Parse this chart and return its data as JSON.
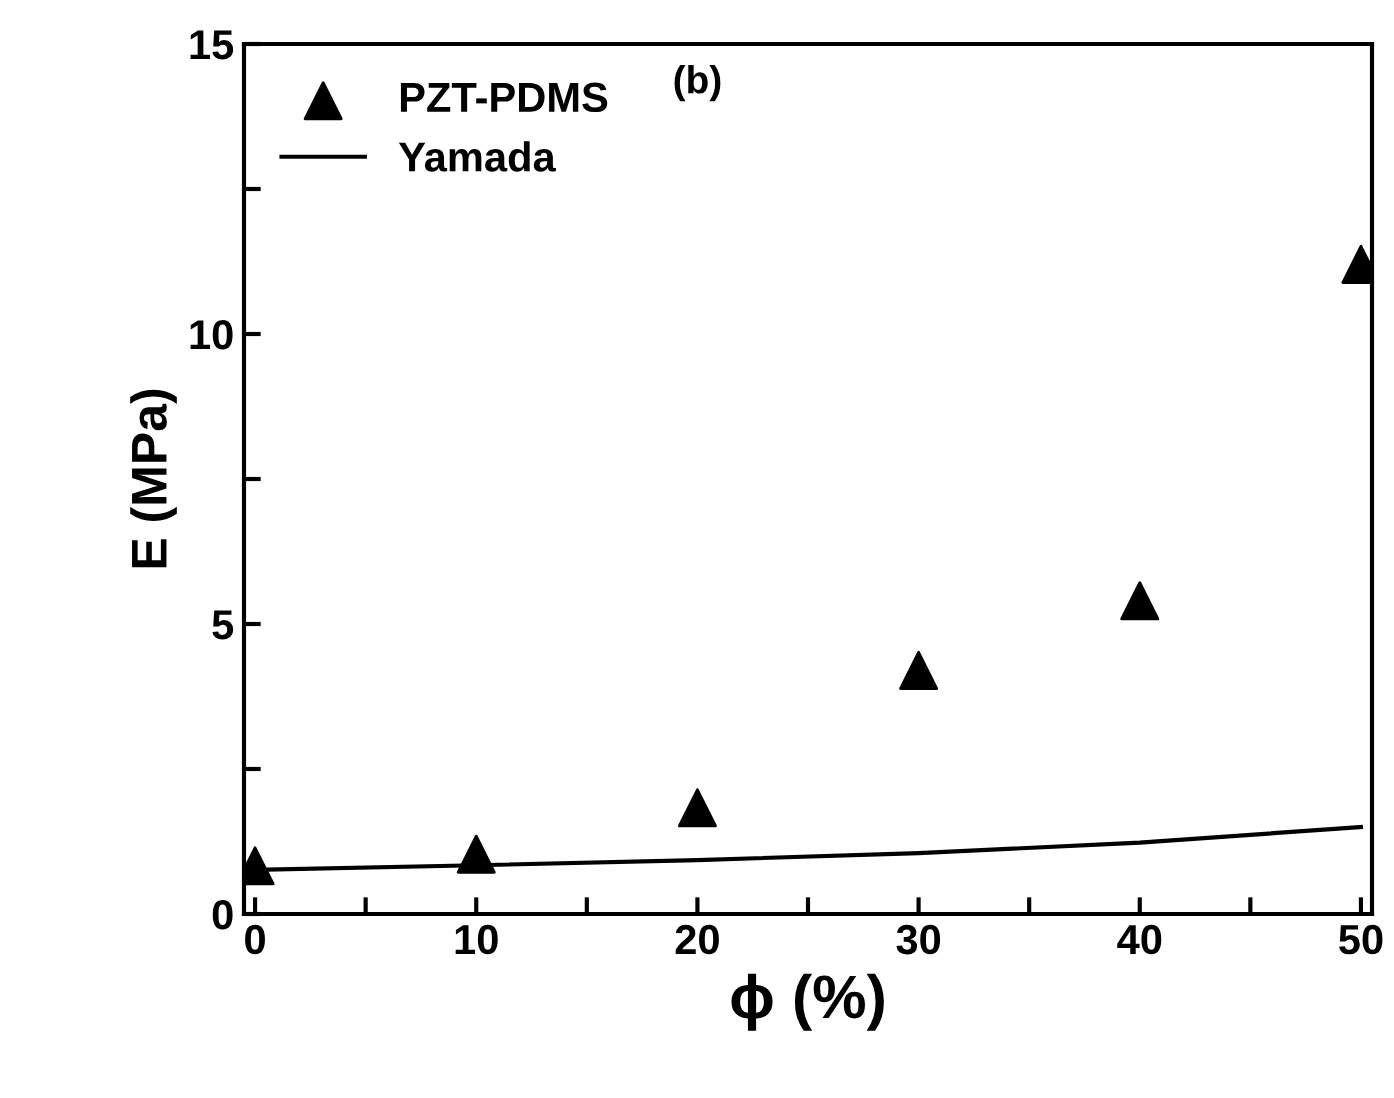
{
  "chart_data": {
    "type": "scatter",
    "xlabel": "ϕ (%)",
    "ylabel": "E (MPa)",
    "annotations": [
      "(b)"
    ],
    "series": [
      {
        "name": "PZT-PDMS",
        "color": "#000000",
        "marker": "triangle",
        "x": [
          0,
          10,
          20,
          30,
          40,
          50
        ],
        "values": [
          0.83,
          1.03,
          1.83,
          4.2,
          5.4,
          11.2
        ]
      },
      {
        "name": "Yamada",
        "type": "line",
        "color": "#000000",
        "marker": "none",
        "line_style": "solid",
        "x": [
          0,
          10,
          20,
          30,
          40,
          50
        ],
        "values": [
          0.76,
          0.84,
          0.93,
          1.05,
          1.23,
          1.5
        ]
      }
    ],
    "xlim": [
      -0.5,
      50.5
    ],
    "ylim": [
      0,
      15
    ],
    "xticks": [
      0,
      {
        "value": 5,
        "label": null
      },
      10,
      {
        "value": 15,
        "label": null
      },
      20,
      {
        "value": 25,
        "label": null
      },
      30,
      {
        "value": 35,
        "label": null
      },
      40,
      {
        "value": 45,
        "label": null
      },
      50
    ],
    "yticks": [
      0,
      {
        "value": 2.5,
        "label": null
      },
      5,
      {
        "value": 7.5,
        "label": null
      },
      10,
      {
        "value": 12.5,
        "label": null
      },
      15
    ],
    "grid": false,
    "legend": "top left"
  }
}
